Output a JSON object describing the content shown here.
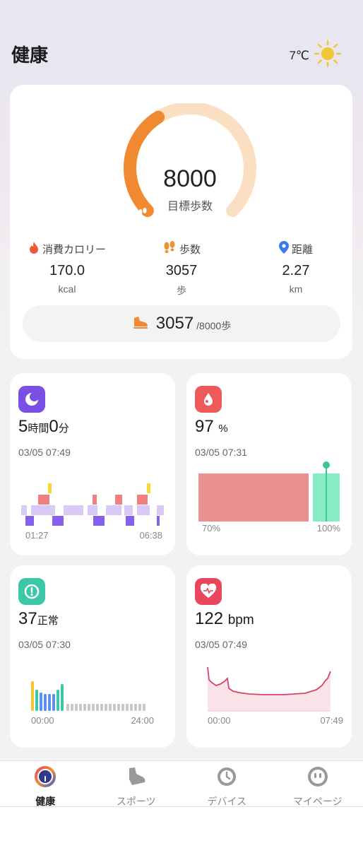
{
  "header": {
    "title": "健康",
    "temperature": "7℃",
    "weather_icon": "sun-icon"
  },
  "steps_card": {
    "goal_value": "8000",
    "goal_label": "目標歩数",
    "progress": 0.382,
    "stats": [
      {
        "label": "消費カロリー",
        "value": "170.0",
        "unit": "kcal",
        "icon": "flame-icon",
        "color": "#ee5a36"
      },
      {
        "label": "歩数",
        "value": "3057",
        "unit": "歩",
        "icon": "footprints-icon",
        "color": "#f0922f"
      },
      {
        "label": "距離",
        "value": "2.27",
        "unit": "km",
        "icon": "location-pin-icon",
        "color": "#3b7bf0"
      }
    ],
    "progress_count": "3057",
    "progress_goal": "/8000歩"
  },
  "sleep": {
    "hours": "5",
    "hours_unit": "時間",
    "minutes": "0",
    "minutes_unit": "分",
    "timestamp": "03/05 07:49",
    "start": "01:27",
    "end": "06:38",
    "color": "#7b4ee6"
  },
  "spo2": {
    "value": "97",
    "unit": "%",
    "timestamp": "03/05 07:31",
    "min_label": "70%",
    "max_label": "100%",
    "color": "#ee5a5a"
  },
  "stress": {
    "value": "37",
    "status": "正常",
    "timestamp": "03/05 07:30",
    "start": "00:00",
    "end": "24:00",
    "color": "#3cc8a8"
  },
  "heart": {
    "value": "122",
    "unit": "bpm",
    "timestamp": "03/05 07:49",
    "start": "00:00",
    "end": "07:49",
    "color": "#e8475c"
  },
  "tabs": [
    {
      "label": "健康",
      "icon": "health-ring-icon",
      "active": true
    },
    {
      "label": "スポーツ",
      "icon": "shoe-icon",
      "active": false
    },
    {
      "label": "デバイス",
      "icon": "watch-icon",
      "active": false
    },
    {
      "label": "マイページ",
      "icon": "profile-face-icon",
      "active": false
    }
  ]
}
